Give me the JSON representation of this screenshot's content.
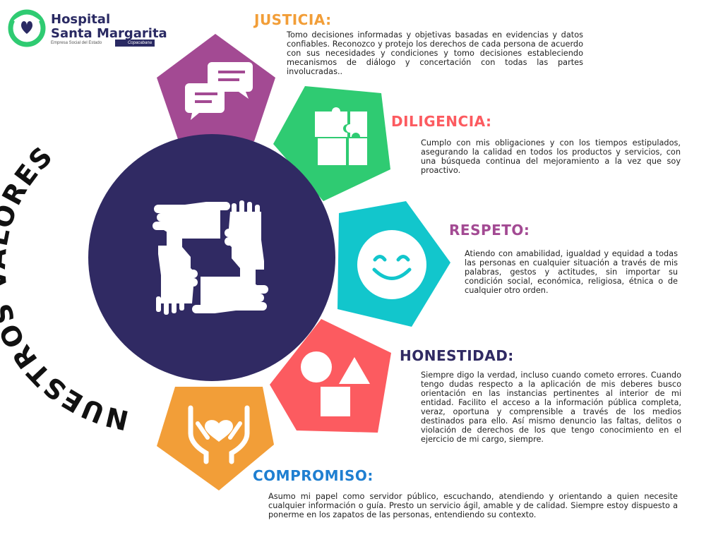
{
  "organization": {
    "name_line1": "Hospital",
    "name_line2": "Santa Margarita",
    "subtitle": "Empresa Social del Estado",
    "location": "Copacabana"
  },
  "title": "NUESTROS VALORES",
  "colors": {
    "navy": "#302a63",
    "purple": "#a34a93",
    "green": "#2fcb72",
    "cyan": "#12c6cc",
    "coral": "#fc5b60",
    "orange": "#f29e38"
  },
  "values": [
    {
      "key": "justicia",
      "title": "JUSTICIA:",
      "title_color": "#f29e38",
      "icon": "chat-bubbles-icon",
      "description": "Tomo decisiones informadas y objetivas basadas en evidencias y datos confiables. Reconozco y protejo los derechos de cada persona de acuerdo con sus necesidades y condiciones y tomo decisiones estableciendo mecanismos de diálogo y concertación con todas las partes involucradas.."
    },
    {
      "key": "diligencia",
      "title": "DILIGENCIA:",
      "title_color": "#fc5b60",
      "icon": "puzzle-icon",
      "description": "Cumplo con mis obligaciones y con los tiempos estipulados, asegurando la calidad en todos los productos y servicios, con una búsqueda continua del mejoramiento a la vez que soy proactivo."
    },
    {
      "key": "respeto",
      "title": "RESPETO:",
      "title_color": "#a34a93",
      "icon": "smiley-icon",
      "description": "Atiendo con amabilidad, igualdad y equidad a todas las personas en cualquier situación a través de mis palabras, gestos y actitudes, sin importar su condición social, económica, religiosa, étnica o de cualquier otro orden."
    },
    {
      "key": "honestidad",
      "title": "HONESTIDAD:",
      "title_color": "#302a63",
      "icon": "shapes-icon",
      "description": "Siempre digo la verdad, incluso cuando cometo errores. Cuando tengo dudas respecto a la aplicación de mis deberes busco orientación en las instancias pertinentes al interior de mi entidad. Facilito el acceso a la información pública completa, veraz, oportuna y comprensible a través de los medios destinados para ello. Así mismo denuncio las faltas, delitos o violación de derechos de los que tengo conocimiento en el ejercicio de mi cargo, siempre."
    },
    {
      "key": "compromiso",
      "title": "COMPROMISO:",
      "title_color": "#1f7fd1",
      "icon": "hands-heart-icon",
      "description": "Asumo mi papel como servidor público, escuchando, atendiendo y orientando a quien necesite cualquier información o guía. Presto un servicio ágil, amable y de calidad. Siempre estoy dispuesto a ponerme en los zapatos de las personas, entendiendo su contexto."
    }
  ]
}
